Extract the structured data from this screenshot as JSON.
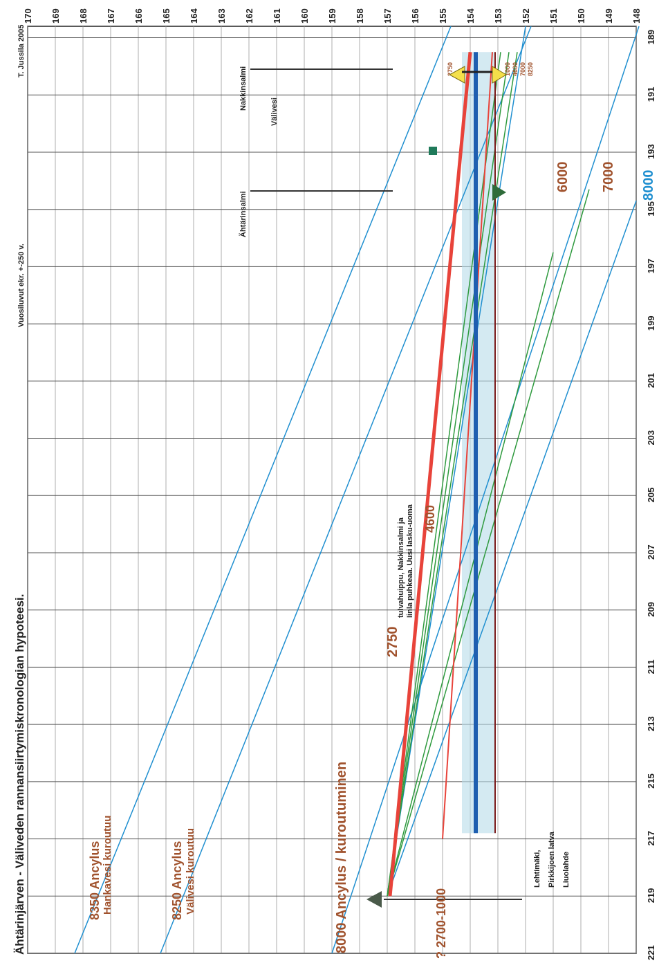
{
  "header": {
    "title": "Ähtärinjärven - Väliveden rannansiirtymiskronologian hypoteesi.",
    "note": "Vuosiluvut ekr. +-250 v.",
    "author": "T. Jussila 2005"
  },
  "labels": {
    "ancylus_8350": "8350 Ancylus",
    "hankavesi": "Hankavesi kuroutuu",
    "ancylus_8250": "8250 Ancylus",
    "valivesi_kur": "Välivesi kuroutuu",
    "ancylus_8000": "8000 Ancylus / kuroutuminen",
    "label_2750": "2750",
    "tulva_1": "tulvahuippu, Nakkinsalmi ja",
    "tulva_2": "Iinla puhkeaa. Uusi lasku-uoma",
    "label_4600": "4600",
    "label_6000": "6000",
    "label_7000": "7000",
    "label_8000": "8000",
    "ahtarinsalmi": "Ähtärinsalmi",
    "valivesi": "Välivesi",
    "nakkinsalmi": "Nakkinsalmi",
    "small_2750": "2750",
    "small_1000": "1000",
    "small_4600": "4600",
    "small_7000": "7000",
    "small_8250": "8250",
    "bottom_range": "? 2700-1000",
    "loc1": "Lehtimäki,",
    "loc2": "Pirkkijoen latva",
    "loc3": "Liuolahde"
  },
  "chart_data": {
    "type": "line",
    "title": "Ähtärinjärven - Väliveden rannansiirtymiskronologian hypoteesi.",
    "orientation": "rotated 90° clockwise (x axis vertical, y axis horizontal)",
    "x_axis": {
      "label": "",
      "range": [
        221,
        188.6
      ],
      "ticks": [
        221,
        219,
        217,
        215,
        213,
        211,
        209,
        207,
        205,
        203,
        201,
        199,
        197,
        195,
        193,
        191,
        189
      ]
    },
    "y_axis": {
      "label": "",
      "range": [
        148,
        170
      ],
      "ticks": [
        148,
        149,
        150,
        151,
        152,
        153,
        154,
        155,
        156,
        157,
        158,
        159,
        160,
        161,
        162,
        163,
        164,
        165,
        166,
        167,
        168,
        169,
        170
      ]
    },
    "grid": true,
    "series": [
      {
        "name": "8350",
        "color": "#1f8fd0",
        "width": 1.5,
        "points": [
          [
            221,
            168.3
          ],
          [
            188.6,
            154.7
          ]
        ]
      },
      {
        "name": "8250",
        "color": "#1f8fd0",
        "width": 1.5,
        "points": [
          [
            221,
            165.2
          ],
          [
            188.6,
            151.8
          ]
        ]
      },
      {
        "name": "8000",
        "color": "#1f8fd0",
        "width": 1.5,
        "points": [
          [
            221,
            159.0
          ],
          [
            188.6,
            147.9
          ]
        ]
      },
      {
        "name": "8250 (end)",
        "color": "#1f8fd0",
        "width": 1.5,
        "points": [
          [
            219,
            157.0
          ],
          [
            188.6,
            152.0
          ]
        ]
      },
      {
        "name": "8000 (end)",
        "color": "#1f8fd0",
        "width": 1.5,
        "points": [
          [
            219,
            157.0
          ],
          [
            194.7,
            148.0
          ]
        ]
      },
      {
        "name": "7000",
        "color": "#2e9a3e",
        "width": 1.5,
        "points": [
          [
            219,
            157.0
          ],
          [
            194.3,
            149.7
          ]
        ]
      },
      {
        "name": "6000",
        "color": "#2e9a3e",
        "width": 1.5,
        "points": [
          [
            219,
            157.0
          ],
          [
            196.5,
            151.0
          ]
        ]
      },
      {
        "name": "4600",
        "color": "#2e9a3e",
        "width": 1.5,
        "points": [
          [
            219,
            157.0
          ],
          [
            189.5,
            152.9
          ]
        ]
      },
      {
        "name": "7000 (end)",
        "color": "#2e9a3e",
        "width": 1.5,
        "points": [
          [
            219,
            157.0
          ],
          [
            189.5,
            152.3
          ]
        ]
      },
      {
        "name": "6000 (end)",
        "color": "#2e9a3e",
        "width": 1.5,
        "points": [
          [
            219,
            157.0
          ],
          [
            189.5,
            152.6
          ]
        ]
      },
      {
        "name": "2750",
        "color": "#e8433a",
        "width": 5,
        "points": [
          [
            219,
            156.9
          ],
          [
            189.5,
            154.0
          ]
        ]
      },
      {
        "name": "1000",
        "color": "#e8433a",
        "width": 2,
        "points": [
          [
            217,
            155.0
          ],
          [
            189.5,
            153.2
          ]
        ]
      },
      {
        "name": "?2700-1000 level",
        "color": "#1f5fb0",
        "width": 6,
        "points": [
          [
            216.8,
            153.8
          ],
          [
            189.5,
            153.8
          ]
        ]
      },
      {
        "name": "153.1 level",
        "color": "#7a1a1a",
        "width": 2,
        "points": [
          [
            216.8,
            153.1
          ],
          [
            189.5,
            153.1
          ]
        ]
      },
      {
        "name": "band",
        "color": "#b7dcea",
        "width": 1,
        "points": []
      }
    ]
  }
}
